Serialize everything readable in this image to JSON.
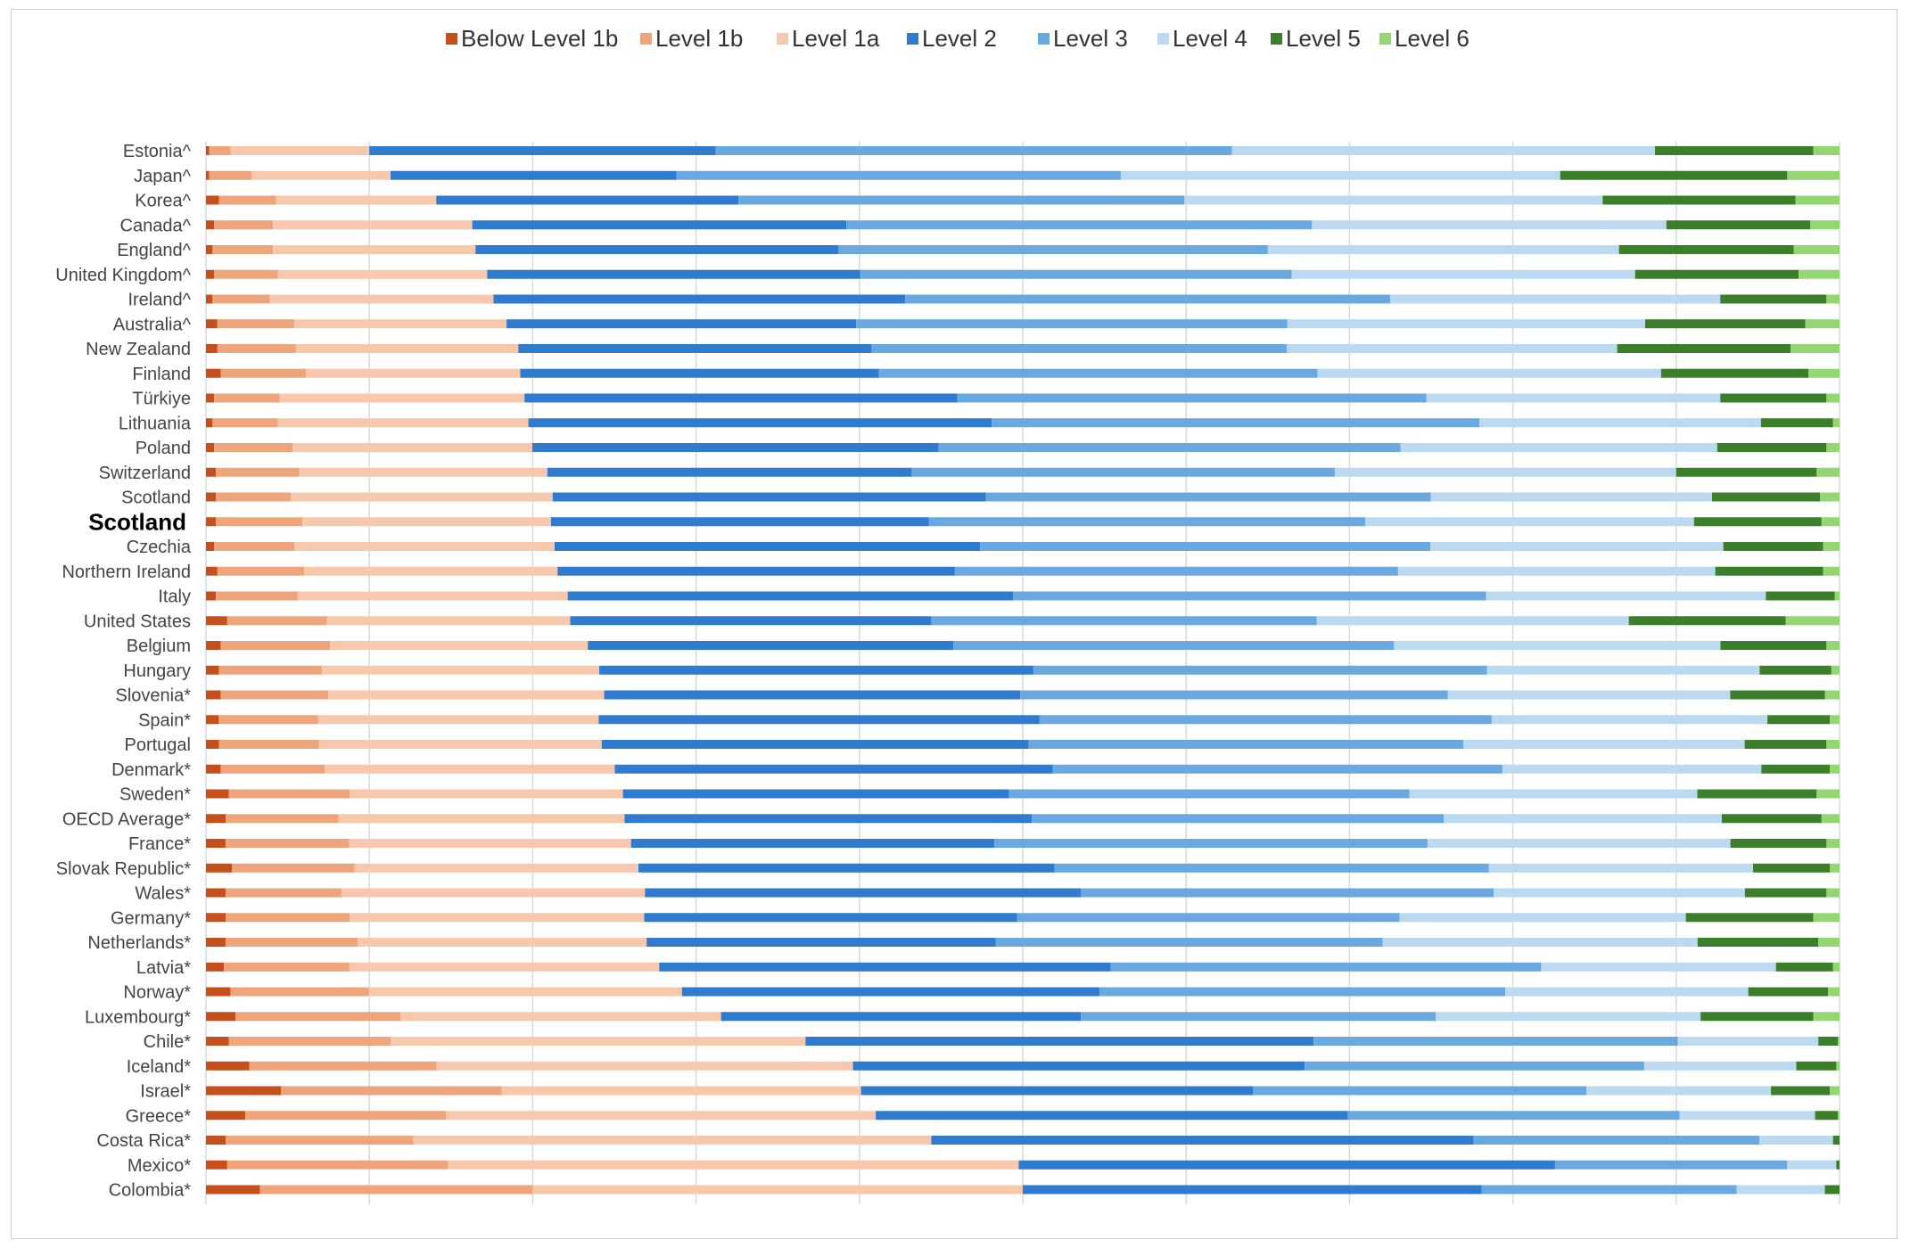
{
  "chart_data": {
    "type": "bar",
    "orientation": "horizontal",
    "stacked": true,
    "normalized": true,
    "grid": true,
    "legend_position": "top",
    "xlim": [
      0,
      100
    ],
    "categories": [
      "Estonia^",
      "Japan^",
      "Korea^",
      "Canada^",
      "England^",
      "United Kingdom^",
      "Ireland^",
      "Australia^",
      "New Zealand",
      "Finland",
      "Türkiye",
      "Lithuania",
      "Poland",
      "Switzerland",
      "Scotland",
      "Scotland",
      "Czechia",
      "Northern Ireland",
      "Italy",
      "United States",
      "Belgium",
      "Hungary",
      "Slovenia*",
      "Spain*",
      "Portugal",
      "Denmark*",
      "Sweden*",
      "OECD Average*",
      "France*",
      "Slovak Republic*",
      "Wales*",
      "Germany*",
      "Netherlands*",
      "Latvia*",
      "Norway*",
      "Luxembourg*",
      "Chile*",
      "Iceland*",
      "Israel*",
      "Greece*",
      "Costa Rica*",
      "Mexico*",
      "Colombia*"
    ],
    "highlight_index": 15,
    "series": [
      {
        "name": "Below Level 1b",
        "color": "#c5501c",
        "values": [
          0.2,
          0.2,
          0.8,
          0.5,
          0.4,
          0.5,
          0.4,
          0.7,
          0.7,
          0.9,
          0.5,
          0.4,
          0.5,
          0.6,
          0.6,
          0.6,
          0.5,
          0.7,
          0.6,
          1.3,
          0.9,
          0.8,
          0.9,
          0.8,
          0.8,
          0.9,
          1.4,
          1.2,
          1.2,
          1.6,
          1.2,
          1.2,
          1.2,
          1.1,
          1.5,
          1.8,
          1.4,
          2.7,
          4.6,
          2.4,
          1.2,
          1.3,
          3.3
        ]
      },
      {
        "name": "Level 1b",
        "color": "#eea57c",
        "values": [
          1.3,
          2.6,
          3.5,
          3.6,
          3.7,
          3.9,
          3.5,
          4.7,
          4.8,
          5.2,
          4.0,
          4.0,
          4.8,
          5.1,
          4.6,
          5.3,
          4.9,
          5.3,
          5.0,
          6.1,
          6.7,
          6.3,
          6.6,
          6.2,
          6.1,
          6.4,
          7.4,
          6.9,
          7.6,
          7.5,
          7.1,
          7.6,
          8.1,
          7.7,
          8.5,
          10.1,
          9.9,
          11.7,
          13.5,
          12.3,
          11.5,
          13.5,
          16.7
        ]
      },
      {
        "name": "Level 1a",
        "color": "#f8c8ad",
        "values": [
          8.5,
          8.5,
          9.8,
          12.2,
          12.4,
          12.8,
          13.7,
          13.0,
          13.6,
          13.1,
          15.0,
          15.3,
          14.7,
          15.2,
          16.0,
          15.2,
          15.9,
          15.5,
          16.5,
          14.9,
          15.8,
          17.0,
          16.9,
          17.5,
          17.3,
          17.8,
          16.7,
          17.5,
          17.3,
          17.4,
          18.6,
          18.0,
          17.7,
          19.0,
          19.2,
          19.6,
          25.4,
          26.0,
          22.0,
          26.3,
          31.7,
          34.9,
          30.0
        ]
      },
      {
        "name": "Level 2",
        "color": "#2e7bd0",
        "values": [
          21.2,
          17.5,
          18.5,
          22.9,
          22.2,
          22.8,
          25.2,
          21.4,
          21.6,
          21.9,
          26.5,
          28.3,
          24.9,
          22.3,
          26.5,
          23.1,
          26.0,
          24.3,
          27.2,
          22.1,
          22.4,
          26.6,
          25.5,
          27.5,
          26.1,
          26.9,
          23.6,
          24.9,
          22.3,
          25.5,
          26.7,
          22.8,
          21.4,
          27.7,
          25.6,
          22.0,
          31.1,
          28.2,
          24.0,
          28.9,
          33.2,
          32.8,
          28.1
        ]
      },
      {
        "name": "Level 3",
        "color": "#6aa8e0",
        "values": [
          31.6,
          27.2,
          27.3,
          28.5,
          26.3,
          26.4,
          29.7,
          26.4,
          25.4,
          26.8,
          28.7,
          29.8,
          28.3,
          25.9,
          27.2,
          26.7,
          27.5,
          27.1,
          28.9,
          23.6,
          27.0,
          27.8,
          26.2,
          28.2,
          26.6,
          27.6,
          24.5,
          25.2,
          26.6,
          26.6,
          25.3,
          23.4,
          23.7,
          26.4,
          24.9,
          21.7,
          22.3,
          21.2,
          20.4,
          20.3,
          17.5,
          14.2,
          15.6
        ]
      },
      {
        "name": "Level 4",
        "color": "#bcd9f2",
        "values": [
          25.9,
          26.9,
          25.6,
          21.7,
          21.5,
          21.0,
          20.2,
          21.9,
          20.2,
          21.0,
          18.0,
          17.2,
          19.4,
          20.9,
          17.2,
          20.1,
          17.9,
          19.4,
          17.1,
          19.1,
          20.0,
          16.7,
          17.3,
          17.2,
          17.2,
          15.9,
          17.6,
          17.0,
          18.6,
          16.2,
          15.4,
          17.5,
          19.3,
          14.4,
          14.9,
          16.2,
          8.6,
          9.5,
          11.3,
          8.3,
          4.5,
          3.0,
          5.4
        ]
      },
      {
        "name": "Level 5",
        "color": "#3c7f2b",
        "values": [
          9.7,
          13.9,
          11.8,
          8.8,
          10.7,
          10.0,
          6.5,
          9.8,
          10.6,
          9.0,
          6.5,
          4.4,
          6.7,
          8.6,
          6.6,
          7.8,
          6.1,
          6.6,
          4.2,
          9.6,
          6.5,
          4.4,
          5.8,
          3.9,
          5.0,
          4.2,
          7.3,
          6.1,
          5.9,
          4.7,
          5.0,
          7.8,
          7.4,
          3.5,
          4.9,
          6.9,
          1.2,
          2.5,
          3.6,
          1.4,
          0.4,
          0.2,
          0.9
        ]
      },
      {
        "name": "Level 6",
        "color": "#93d672",
        "values": [
          1.6,
          3.2,
          2.7,
          1.8,
          2.8,
          2.5,
          0.8,
          2.1,
          3.0,
          1.9,
          0.8,
          0.4,
          0.8,
          1.4,
          1.2,
          1.1,
          1.0,
          1.0,
          0.3,
          3.3,
          0.8,
          0.5,
          0.9,
          0.6,
          0.8,
          0.6,
          1.4,
          1.1,
          0.8,
          0.6,
          0.8,
          1.6,
          1.3,
          0.4,
          0.7,
          1.6,
          0.1,
          0.2,
          0.6,
          0.1,
          0.0,
          0.0,
          0.0
        ]
      }
    ]
  }
}
